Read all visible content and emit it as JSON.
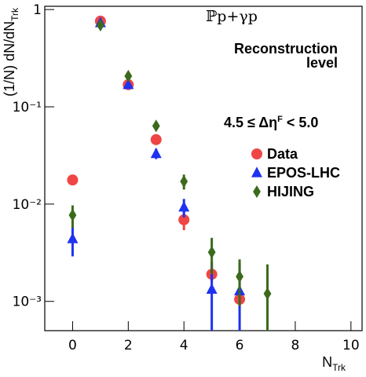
{
  "chart_data": {
    "type": "scatter",
    "ylabel": {
      "main": "(1/N) dN/dN",
      "sub": "Trk"
    },
    "xlabel": {
      "main": "N",
      "sub": "Trk"
    },
    "annotations": {
      "process": "ℙp+γp",
      "level": [
        "Reconstruction",
        "level"
      ],
      "selection": {
        "main": "4.5 ≤ Δη",
        "sup": "F",
        "end": " < 5.0"
      }
    },
    "xlim": [
      -1,
      10.4
    ],
    "xticks": [
      0,
      2,
      4,
      6,
      8,
      10
    ],
    "ylim": [
      0.0005,
      1.08
    ],
    "ylog": true,
    "yticks": [
      {
        "value": 0.001,
        "label": "10⁻³"
      },
      {
        "value": 0.01,
        "label": "10⁻²"
      },
      {
        "value": 0.1,
        "label": "10⁻¹"
      },
      1
    ],
    "series": [
      {
        "name": "Data",
        "color": "#f04545",
        "marker": "circle",
        "x": [
          0,
          1,
          2,
          3,
          4,
          5,
          6
        ],
        "values": [
          0.0177,
          0.76,
          0.169,
          0.046,
          0.0069,
          0.0019,
          0.00105
        ],
        "errors": [
          0.002,
          0.02,
          0.005,
          0.002,
          0.0015,
          0.0003,
          0.0002
        ]
      },
      {
        "name": "EPOS-LHC",
        "color": "#1e32f0",
        "marker": "triangle",
        "x": [
          0,
          1,
          2,
          3,
          4,
          5,
          6
        ],
        "values": [
          0.0044,
          0.73,
          0.169,
          0.033,
          0.0093,
          0.00133,
          0.00128
        ],
        "errors": [
          0.0015,
          0.02,
          0.005,
          0.004,
          0.002,
          0.0012,
          0.0012
        ]
      },
      {
        "name": "HIJING",
        "color": "#3b6a1c",
        "marker": "diamond",
        "x": [
          0,
          1,
          2,
          3,
          4,
          5,
          6,
          7
        ],
        "values": [
          0.0077,
          0.69,
          0.207,
          0.0636,
          0.0171,
          0.0032,
          0.0018,
          0.0012
        ],
        "errors": [
          0.002,
          0.02,
          0.006,
          0.004,
          0.003,
          0.0013,
          0.0009,
          0.0012
        ]
      }
    ]
  }
}
